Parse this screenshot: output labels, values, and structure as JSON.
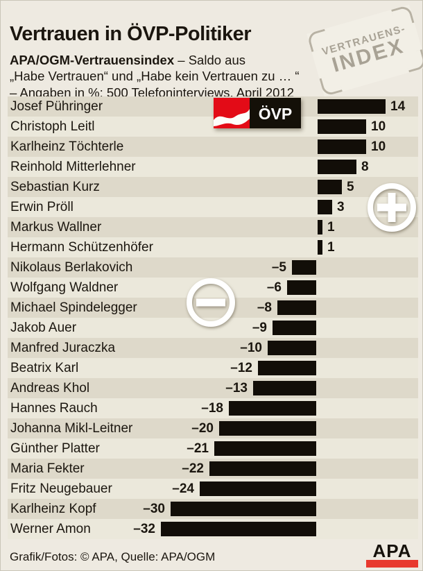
{
  "page": {
    "title": "Vertrauen in ÖVP-Politiker",
    "subtitle_bold": "APA/OGM-Vertrauensindex",
    "subtitle_rest": " – Saldo aus",
    "subtitle_line2": "„Habe Vertrauen“ und „Habe kein Vertrauen zu … “",
    "subtitle_line3": "– Angaben in %; 500 Telefoninterviews, April 2012",
    "stamp_line1": "VERTRAUENS-",
    "stamp_line2": "INDEX",
    "footer": "Grafik/Fotos: © APA, Quelle: APA/OGM",
    "apa_logo_text": "APA",
    "ovp_logo_text": "ÖVP"
  },
  "colors": {
    "background": "#eeeae1",
    "row_dark": "#ded9ca",
    "row_light": "#ebe8db",
    "ink": "#1b160f",
    "bar": "#120e08",
    "stamp_gray": "#a8a295",
    "apa_red": "#e8392e",
    "ovp_red": "#e30b17"
  },
  "chart_data": {
    "type": "bar",
    "orientation": "horizontal",
    "title": "Vertrauen in ÖVP-Politiker",
    "value_unit": "% (Saldo aus „Habe Vertrauen“ und „Habe kein Vertrauen“)",
    "source": "APA/OGM, 500 Telefoninterviews, April 2012",
    "xlim": [
      -32,
      21
    ],
    "baseline": 0,
    "grid": false,
    "legend": "none",
    "categories": [
      "Josef Pühringer",
      "Christoph Leitl",
      "Karlheinz Töchterle",
      "Reinhold Mitterlehner",
      "Sebastian Kurz",
      "Erwin Pröll",
      "Markus Wallner",
      "Hermann Schützenhöfer",
      "Nikolaus Berlakovich",
      "Wolfgang Waldner",
      "Michael Spindelegger",
      "Jakob Auer",
      "Manfred Juraczka",
      "Beatrix Karl",
      "Andreas Khol",
      "Hannes Rauch",
      "Johanna Mikl-Leitner",
      "Günther Platter",
      "Maria Fekter",
      "Fritz Neugebauer",
      "Karlheinz Kopf",
      "Werner Amon"
    ],
    "values": [
      14,
      10,
      10,
      8,
      5,
      3,
      1,
      1,
      -5,
      -6,
      -8,
      -9,
      -10,
      -12,
      -13,
      -18,
      -20,
      -21,
      -22,
      -24,
      -30,
      -32
    ],
    "value_labels": [
      "14",
      "10",
      "10",
      "8",
      "5",
      "3",
      "1",
      "1",
      "–5",
      "–6",
      "–8",
      "–9",
      "–10",
      "–12",
      "–13",
      "–18",
      "–20",
      "–21",
      "–22",
      "–24",
      "–30",
      "–32"
    ],
    "annotations": [
      "plus-badge near positive bars",
      "minus-badge near negative bars",
      "ÖVP party logo in first rows"
    ]
  }
}
